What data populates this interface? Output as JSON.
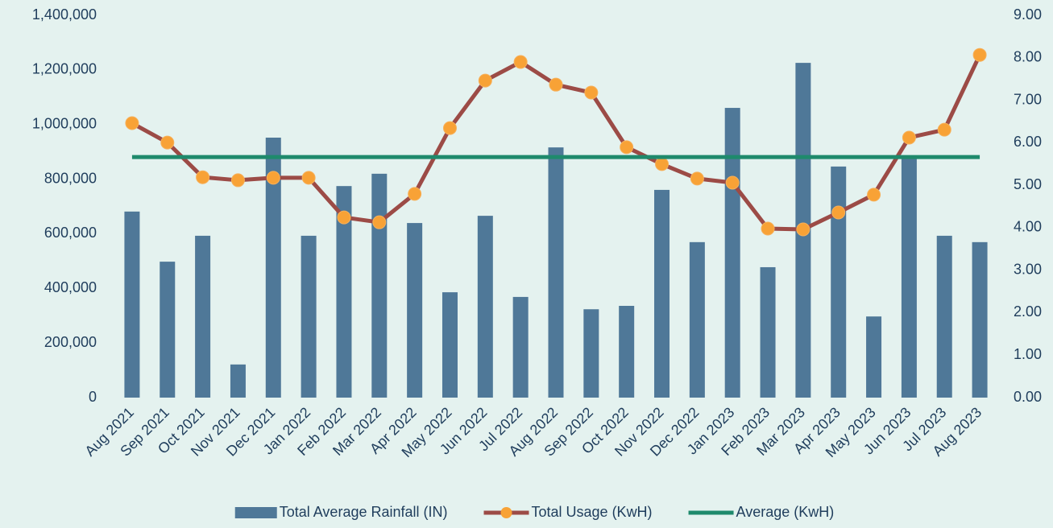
{
  "chart_data": {
    "type": "combo",
    "categories": [
      "Aug 2021",
      "Sep 2021",
      "Oct 2021",
      "Nov 2021",
      "Dec 2021",
      "Jan 2022",
      "Feb 2022",
      "Mar 2022",
      "Apr 2022",
      "May 2022",
      "Jun 2022",
      "Jul 2022",
      "Aug 2022",
      "Sep 2022",
      "Oct 2022",
      "Nov 2022",
      "Dec 2022",
      "Jan 2023",
      "Feb 2023",
      "Mar 2023",
      "Apr 2023",
      "May 2023",
      "Jun 2023",
      "Jul 2023",
      "Aug 2023"
    ],
    "series": [
      {
        "name": "Total Average Rainfall (IN)",
        "type": "bar",
        "axis": "y2",
        "color": "#4f7898",
        "values": [
          4.38,
          3.2,
          3.81,
          0.78,
          6.12,
          3.81,
          4.98,
          5.27,
          4.11,
          2.48,
          4.28,
          2.37,
          5.89,
          2.08,
          2.16,
          4.89,
          3.66,
          6.82,
          3.07,
          7.88,
          5.44,
          1.91,
          5.65,
          3.81,
          3.66
        ]
      },
      {
        "name": "Total Usage (KwH)",
        "type": "line",
        "axis": "y",
        "color": "#9c4b46",
        "marker_color": "#f8a236",
        "values": [
          1005000,
          934000,
          807000,
          796000,
          805000,
          805000,
          660000,
          642000,
          746000,
          987000,
          1161000,
          1229000,
          1146000,
          1117000,
          917000,
          855000,
          802000,
          787000,
          619000,
          616000,
          678000,
          743000,
          952000,
          981000,
          1255000
        ]
      },
      {
        "name": "Average (KwH)",
        "type": "line",
        "axis": "y",
        "color": "#1e8a6c",
        "values": [
          881000,
          881000,
          881000,
          881000,
          881000,
          881000,
          881000,
          881000,
          881000,
          881000,
          881000,
          881000,
          881000,
          881000,
          881000,
          881000,
          881000,
          881000,
          881000,
          881000,
          881000,
          881000,
          881000,
          881000,
          881000
        ]
      }
    ],
    "ylim": [
      0,
      1400000
    ],
    "yticks": [
      0,
      {
        "value": 200000,
        "label": "200,000"
      },
      {
        "value": 400000,
        "label": "400,000"
      },
      {
        "value": 600000,
        "label": "600,000"
      },
      {
        "value": 800000,
        "label": "800,000"
      },
      {
        "value": 1000000,
        "label": "1,000,000"
      },
      {
        "value": 1200000,
        "label": "1,200,000"
      },
      {
        "value": 1400000,
        "label": "1,400,000"
      }
    ],
    "y2lim": [
      0,
      9
    ],
    "y2ticks": [
      {
        "value": 0,
        "label": "0.00"
      },
      {
        "value": 1,
        "label": "1.00"
      },
      {
        "value": 2,
        "label": "2.00"
      },
      {
        "value": 3,
        "label": "3.00"
      },
      {
        "value": 4,
        "label": "4.00"
      },
      {
        "value": 5,
        "label": "5.00"
      },
      {
        "value": 6,
        "label": "6.00"
      },
      {
        "value": 7,
        "label": "7.00"
      },
      {
        "value": 8,
        "label": "8.00"
      },
      {
        "value": 9,
        "label": "9.00"
      }
    ],
    "grid": false,
    "legend": "bottom"
  }
}
